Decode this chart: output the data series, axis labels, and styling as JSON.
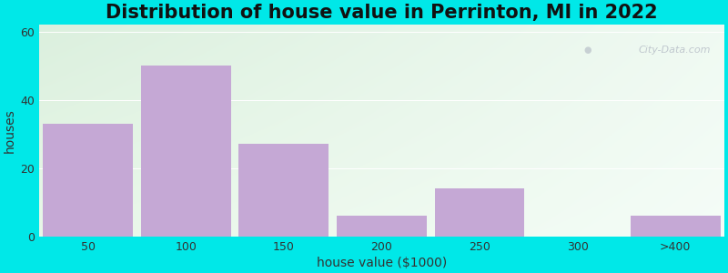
{
  "title": "Distribution of house value in Perrinton, MI in 2022",
  "xlabel": "house value ($1000)",
  "ylabel": "houses",
  "bar_labels": [
    "50",
    "100",
    "150",
    "200",
    "250",
    "300",
    ">400"
  ],
  "bar_values": [
    33,
    50,
    27,
    6,
    14,
    0,
    6
  ],
  "bar_color": "#c5a8d5",
  "ylim": [
    0,
    62
  ],
  "yticks": [
    0,
    20,
    40,
    60
  ],
  "background_outer": "#00e8e8",
  "gradient_top_left": "#dbeedd",
  "gradient_top_right": "#f0f8f0",
  "gradient_bottom": "#e8f8e8",
  "title_fontsize": 15,
  "axis_fontsize": 10,
  "tick_fontsize": 9,
  "bar_width": 0.92,
  "watermark": "City-Data.com"
}
